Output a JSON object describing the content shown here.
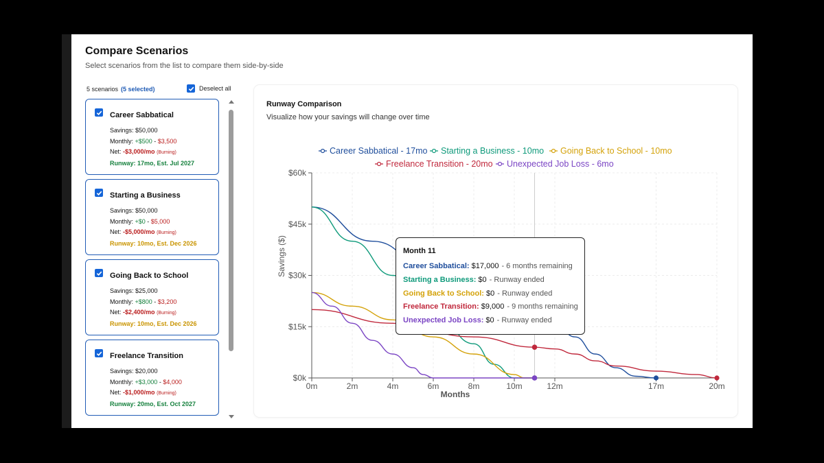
{
  "page": {
    "title": "Compare Scenarios",
    "subtitle": "Select scenarios from the list to compare them side-by-side"
  },
  "list": {
    "count_label": "5 scenarios",
    "selected_label": "(5 selected)",
    "deselect_label": "Deselect all"
  },
  "scenarios": [
    {
      "name": "Career Sabbatical",
      "savings": "Savings: $50,000",
      "monthly_prefix": "Monthly: ",
      "monthly_in": "+$500",
      "monthly_sep": " - ",
      "monthly_out": "$3,500",
      "net_prefix": "Net: ",
      "net_value": "-$3,000/mo",
      "burn": "(Burning)",
      "runway": "Runway: 17mo, Est. Jul 2027",
      "runway_color": "green"
    },
    {
      "name": "Starting a Business",
      "savings": "Savings: $50,000",
      "monthly_prefix": "Monthly: ",
      "monthly_in": "+$0",
      "monthly_sep": " - ",
      "monthly_out": "$5,000",
      "net_prefix": "Net: ",
      "net_value": "-$5,000/mo",
      "burn": "(Burning)",
      "runway": "Runway: 10mo, Est. Dec 2026",
      "runway_color": "amber"
    },
    {
      "name": "Going Back to School",
      "savings": "Savings: $25,000",
      "monthly_prefix": "Monthly: ",
      "monthly_in": "+$800",
      "monthly_sep": " - ",
      "monthly_out": "$3,200",
      "net_prefix": "Net: ",
      "net_value": "-$2,400/mo",
      "burn": "(Burning)",
      "runway": "Runway: 10mo, Est. Dec 2026",
      "runway_color": "amber"
    },
    {
      "name": "Freelance Transition",
      "savings": "Savings: $20,000",
      "monthly_prefix": "Monthly: ",
      "monthly_in": "+$3,000",
      "monthly_sep": " - ",
      "monthly_out": "$4,000",
      "net_prefix": "Net: ",
      "net_value": "-$1,000/mo",
      "burn": "(Burning)",
      "runway": "Runway: 20mo, Est. Oct 2027",
      "runway_color": "green"
    }
  ],
  "chart_panel": {
    "title": "Runway Comparison",
    "subtitle": "Visualize how your savings will change over time"
  },
  "colors": {
    "accent": "#1565d8",
    "career": "#1f4e9c",
    "business": "#0f9a7b",
    "school": "#d4a20a",
    "freelance": "#c0283c",
    "jobloss": "#7b45c4"
  },
  "chart_data": {
    "type": "line",
    "xlabel": "Months",
    "ylabel": "Savings ($)",
    "xlim": [
      0,
      20
    ],
    "ylim": [
      0,
      60000
    ],
    "x_ticks": [
      0,
      2,
      4,
      6,
      8,
      10,
      12,
      17,
      20
    ],
    "x_tick_labels": [
      "0m",
      "2m",
      "4m",
      "6m",
      "8m",
      "10m",
      "12m",
      "17m",
      "20m"
    ],
    "y_ticks": [
      0,
      15000,
      30000,
      45000,
      60000
    ],
    "y_tick_labels": [
      "$0k",
      "$15k",
      "$30k",
      "$45k",
      "$60k"
    ],
    "grid": true,
    "legend_position": "top",
    "hover_month": 11,
    "series": [
      {
        "name": "Career Sabbatical - 17mo",
        "color": "#1f4e9c",
        "x": [
          0,
          3,
          6,
          9,
          11,
          12,
          13,
          14,
          15,
          16,
          17
        ],
        "y": [
          50000,
          40000,
          31000,
          23000,
          17000,
          16000,
          12000,
          7000,
          3000,
          500,
          0
        ]
      },
      {
        "name": "Starting a Business - 10mo",
        "color": "#0f9a7b",
        "x": [
          0,
          2,
          4,
          6,
          8,
          9,
          10,
          11
        ],
        "y": [
          50000,
          40000,
          30000,
          20000,
          10000,
          4000,
          0,
          0
        ]
      },
      {
        "name": "Going Back to School - 10mo",
        "color": "#d4a20a",
        "x": [
          0,
          2,
          4,
          6,
          8,
          10,
          10.5,
          11
        ],
        "y": [
          25000,
          21000,
          17000,
          12000,
          7000,
          1000,
          0,
          0
        ]
      },
      {
        "name": "Freelance Transition - 20mo",
        "color": "#c0283c",
        "x": [
          0,
          4,
          8,
          11,
          12,
          13,
          14,
          15,
          17,
          19,
          20
        ],
        "y": [
          20000,
          16000,
          12000,
          9000,
          8500,
          7000,
          5000,
          3500,
          2000,
          1000,
          0
        ]
      },
      {
        "name": "Unexpected Job Loss - 6mo",
        "color": "#7b45c4",
        "x": [
          0,
          1,
          2,
          3,
          4,
          5,
          5.5,
          6,
          11
        ],
        "y": [
          25000,
          21000,
          16000,
          11000,
          7000,
          3000,
          1000,
          0,
          0
        ]
      }
    ]
  },
  "tooltip": {
    "title": "Month 11",
    "rows": [
      {
        "name": "Career Sabbatical:",
        "value": "$17,000",
        "note": "- 6 months remaining",
        "color": "#1f4e9c"
      },
      {
        "name": "Starting a Business:",
        "value": "$0",
        "note": "- Runway ended",
        "color": "#0f9a7b"
      },
      {
        "name": "Going Back to School:",
        "value": "$0",
        "note": "- Runway ended",
        "color": "#d4a20a"
      },
      {
        "name": "Freelance Transition:",
        "value": "$9,000",
        "note": "- 9 months remaining",
        "color": "#c0283c"
      },
      {
        "name": "Unexpected Job Loss:",
        "value": "$0",
        "note": "- Runway ended",
        "color": "#7b45c4"
      }
    ]
  }
}
